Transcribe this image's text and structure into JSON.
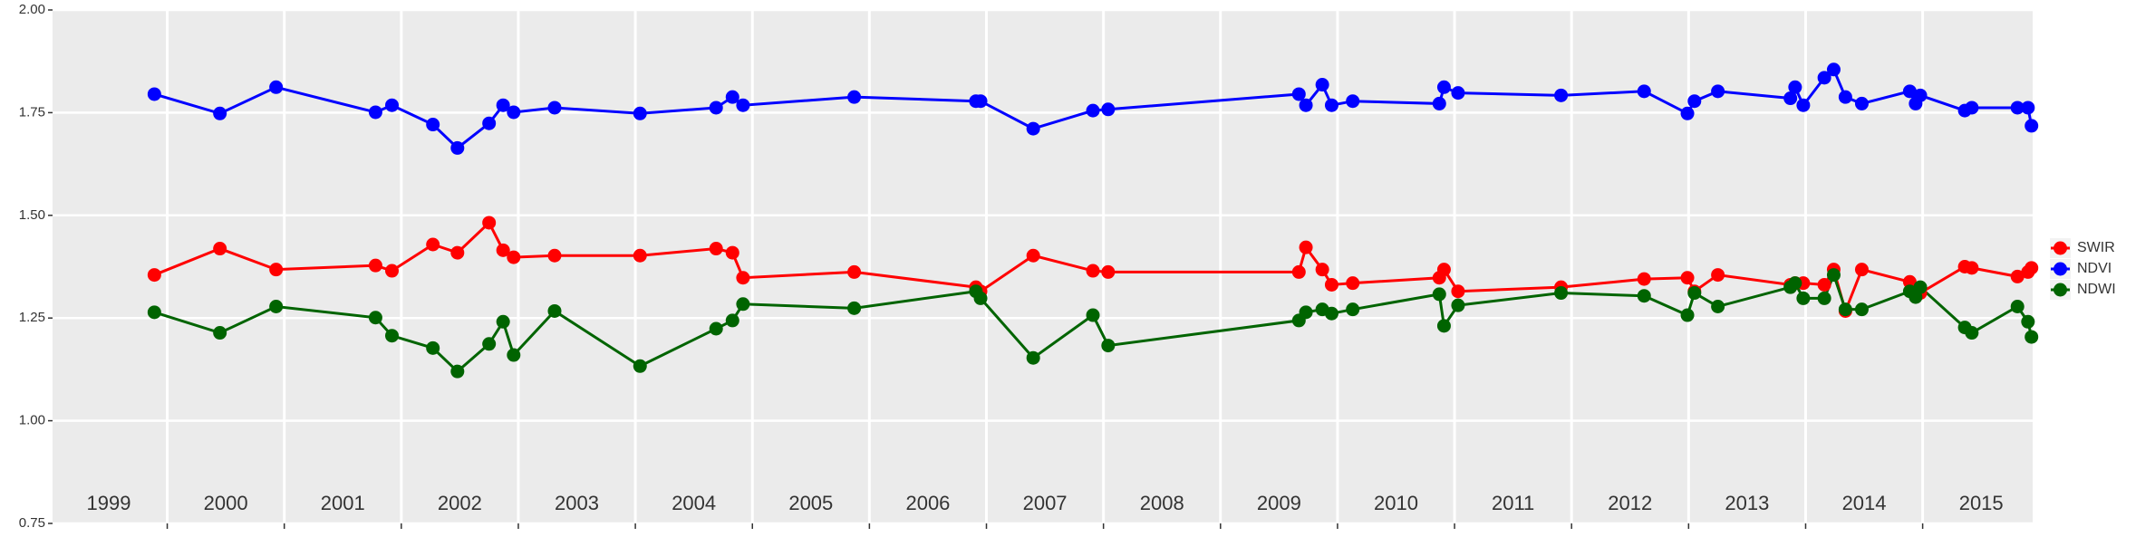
{
  "chart_data": {
    "type": "line",
    "x": [
      1999.89,
      2000.45,
      2000.93,
      2001.78,
      2001.92,
      2002.27,
      2002.48,
      2002.75,
      2002.87,
      2002.96,
      2003.31,
      2004.04,
      2004.69,
      2004.83,
      2004.92,
      2005.87,
      2006.91,
      2006.95,
      2007.4,
      2007.91,
      2008.04,
      2009.67,
      2009.73,
      2009.87,
      2009.95,
      2010.13,
      2010.87,
      2010.91,
      2011.03,
      2011.91,
      2012.62,
      2012.99,
      2013.05,
      2013.25,
      2013.87,
      2013.91,
      2013.98,
      2014.16,
      2014.24,
      2014.34,
      2014.48,
      2014.89,
      2014.94,
      2014.98,
      2015.36,
      2015.42,
      2015.81,
      2015.9,
      2015.93
    ],
    "series": [
      {
        "name": "SWIR",
        "color": "#ff0000",
        "values": [
          1.355,
          1.419,
          1.368,
          1.378,
          1.365,
          1.429,
          1.409,
          1.482,
          1.415,
          1.398,
          1.402,
          1.402,
          1.419,
          1.409,
          1.348,
          1.362,
          1.325,
          1.315,
          1.402,
          1.365,
          1.362,
          1.362,
          1.422,
          1.368,
          1.331,
          1.335,
          1.348,
          1.368,
          1.315,
          1.325,
          1.345,
          1.348,
          1.315,
          1.355,
          1.331,
          1.335,
          1.335,
          1.331,
          1.368,
          1.267,
          1.368,
          1.338,
          1.315,
          1.311,
          1.375,
          1.372,
          1.351,
          1.362,
          1.372
        ]
      },
      {
        "name": "NDVI",
        "color": "#0000ff",
        "values": [
          1.795,
          1.748,
          1.812,
          1.751,
          1.768,
          1.721,
          1.664,
          1.724,
          1.768,
          1.751,
          1.762,
          1.748,
          1.762,
          1.788,
          1.768,
          1.788,
          1.778,
          1.778,
          1.711,
          1.755,
          1.758,
          1.795,
          1.768,
          1.818,
          1.768,
          1.778,
          1.772,
          1.812,
          1.798,
          1.792,
          1.802,
          1.748,
          1.778,
          1.802,
          1.785,
          1.812,
          1.768,
          1.835,
          1.855,
          1.788,
          1.772,
          1.802,
          1.772,
          1.792,
          1.755,
          1.762,
          1.762,
          1.762,
          1.718
        ]
      },
      {
        "name": "NDWI",
        "color": "#006400",
        "values": [
          1.264,
          1.214,
          1.278,
          1.251,
          1.207,
          1.177,
          1.12,
          1.187,
          1.241,
          1.16,
          1.267,
          1.133,
          1.224,
          1.244,
          1.284,
          1.274,
          1.315,
          1.298,
          1.153,
          1.257,
          1.183,
          1.244,
          1.264,
          1.271,
          1.261,
          1.271,
          1.308,
          1.231,
          1.281,
          1.311,
          1.304,
          1.257,
          1.311,
          1.278,
          1.325,
          1.335,
          1.298,
          1.298,
          1.355,
          1.271,
          1.271,
          1.315,
          1.301,
          1.325,
          1.227,
          1.214,
          1.278,
          1.241,
          1.204
        ]
      }
    ],
    "xlim": [
      1999.02,
      2015.94
    ],
    "x_grid": [
      2000,
      2001,
      2002,
      2003,
      2004,
      2005,
      2006,
      2007,
      2008,
      2009,
      2010,
      2011,
      2012,
      2013,
      2014,
      2015
    ],
    "year_labels": [
      {
        "value": 1999.5,
        "label": "1999"
      },
      {
        "value": 2000.5,
        "label": "2000"
      },
      {
        "value": 2001.5,
        "label": "2001"
      },
      {
        "value": 2002.5,
        "label": "2002"
      },
      {
        "value": 2003.5,
        "label": "2003"
      },
      {
        "value": 2004.5,
        "label": "2004"
      },
      {
        "value": 2005.5,
        "label": "2005"
      },
      {
        "value": 2006.5,
        "label": "2006"
      },
      {
        "value": 2007.5,
        "label": "2007"
      },
      {
        "value": 2008.5,
        "label": "2008"
      },
      {
        "value": 2009.5,
        "label": "2009"
      },
      {
        "value": 2010.5,
        "label": "2010"
      },
      {
        "value": 2011.5,
        "label": "2011"
      },
      {
        "value": 2012.5,
        "label": "2012"
      },
      {
        "value": 2013.5,
        "label": "2013"
      },
      {
        "value": 2014.5,
        "label": "2014"
      },
      {
        "value": 2015.5,
        "label": "2015"
      }
    ],
    "ylim": [
      0.75,
      2.0
    ],
    "yticks": [
      {
        "value": 0.75,
        "label": "0.75"
      },
      {
        "value": 1.0,
        "label": "1.00"
      },
      {
        "value": 1.25,
        "label": "1.25"
      },
      {
        "value": 1.5,
        "label": "1.50"
      },
      {
        "value": 1.75,
        "label": "1.75"
      },
      {
        "value": 2.0,
        "label": "2.00"
      }
    ],
    "grid": true,
    "legend": "right"
  }
}
